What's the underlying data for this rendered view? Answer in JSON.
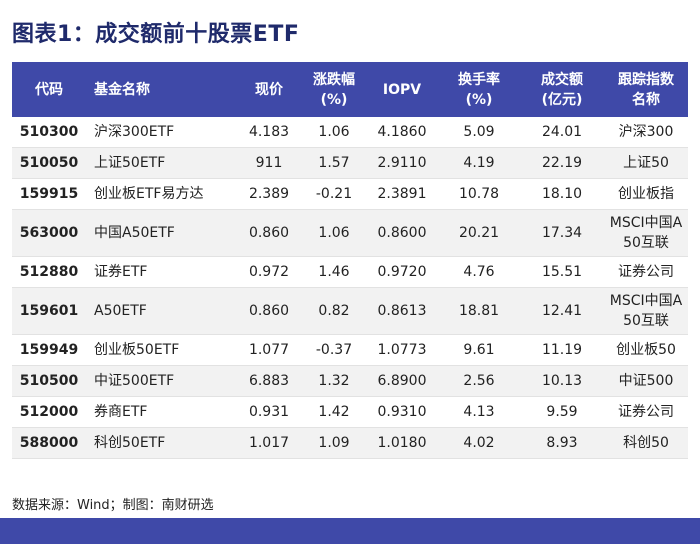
{
  "title": "图表1：成交额前十股票ETF",
  "table": {
    "headers": [
      "代码",
      "基金名称",
      "现价",
      "涨跌幅\n(%)",
      "IOPV",
      "换手率\n(%)",
      "成交额\n(亿元)",
      "跟踪指数\n名称"
    ],
    "rows": [
      [
        "510300",
        "沪深300ETF",
        "4.183",
        "1.06",
        "4.1860",
        "5.09",
        "24.01",
        "沪深300"
      ],
      [
        "510050",
        "上证50ETF",
        "911",
        "1.57",
        "2.9110",
        "4.19",
        "22.19",
        "上证50"
      ],
      [
        "159915",
        "创业板ETF易方达",
        "2.389",
        "-0.21",
        "2.3891",
        "10.78",
        "18.10",
        "创业板指"
      ],
      [
        "563000",
        "中国A50ETF",
        "0.860",
        "1.06",
        "0.8600",
        "20.21",
        "17.34",
        "MSCI中国A\n50互联"
      ],
      [
        "512880",
        "证券ETF",
        "0.972",
        "1.46",
        "0.9720",
        "4.76",
        "15.51",
        "证券公司"
      ],
      [
        "159601",
        "A50ETF",
        "0.860",
        "0.82",
        "0.8613",
        "18.81",
        "12.41",
        "MSCI中国A\n50互联"
      ],
      [
        "159949",
        "创业板50ETF",
        "1.077",
        "-0.37",
        "1.0773",
        "9.61",
        "11.19",
        "创业板50"
      ],
      [
        "510500",
        "中证500ETF",
        "6.883",
        "1.32",
        "6.8900",
        "2.56",
        "10.13",
        "中证500"
      ],
      [
        "512000",
        "券商ETF",
        "0.931",
        "1.42",
        "0.9310",
        "4.13",
        "9.59",
        "证券公司"
      ],
      [
        "588000",
        "科创50ETF",
        "1.017",
        "1.09",
        "1.0180",
        "4.02",
        "8.93",
        "科创50"
      ]
    ]
  },
  "source": "数据来源：Wind；制图：南财研选"
}
